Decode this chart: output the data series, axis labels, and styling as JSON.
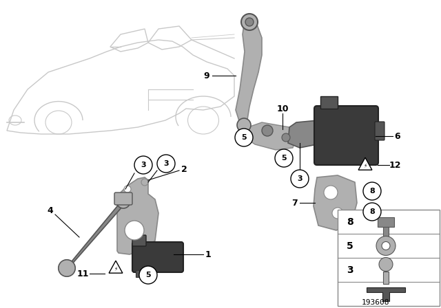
{
  "background_color": "#ffffff",
  "part_number": "193608",
  "car_color": "#c8c8c8",
  "part_gray_light": "#b0b0b0",
  "part_gray_mid": "#888888",
  "part_gray_dark": "#555555",
  "part_gray_darker": "#3a3a3a",
  "line_color": "#000000",
  "legend_border": "#aaaaaa"
}
